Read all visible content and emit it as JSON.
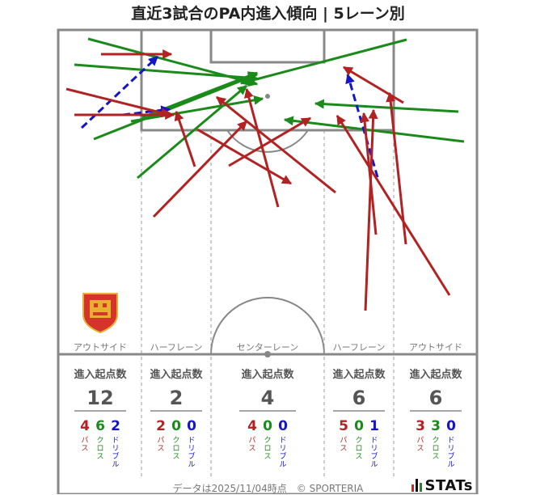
{
  "title": "直近3試合のPA内進入傾向 | 5レーン別",
  "colors": {
    "pass": "#b22222",
    "cross": "#1a8a1a",
    "dribble": "#1515c8",
    "line": "#888888"
  },
  "lanes": [
    {
      "label": "アウトサイド",
      "stat_head": "進入起点数",
      "total": "12",
      "breakdown": [
        {
          "value": "4",
          "label": "パス",
          "color": "#b22222"
        },
        {
          "value": "6",
          "label": "クロス",
          "color": "#1a8a1a"
        },
        {
          "value": "2",
          "label": "ドリブル",
          "color": "#1515c8"
        }
      ]
    },
    {
      "label": "ハーフレーン",
      "stat_head": "進入起点数",
      "total": "2",
      "breakdown": [
        {
          "value": "2",
          "label": "パス",
          "color": "#b22222"
        },
        {
          "value": "0",
          "label": "クロス",
          "color": "#1a8a1a"
        },
        {
          "value": "0",
          "label": "ドリブル",
          "color": "#1515c8"
        }
      ]
    },
    {
      "label": "センターレーン",
      "stat_head": "進入起点数",
      "total": "4",
      "breakdown": [
        {
          "value": "4",
          "label": "パス",
          "color": "#b22222"
        },
        {
          "value": "0",
          "label": "クロス",
          "color": "#1a8a1a"
        },
        {
          "value": "0",
          "label": "ドリブル",
          "color": "#1515c8"
        }
      ]
    },
    {
      "label": "ハーフレーン",
      "stat_head": "進入起点数",
      "total": "6",
      "breakdown": [
        {
          "value": "5",
          "label": "パス",
          "color": "#b22222"
        },
        {
          "value": "0",
          "label": "クロス",
          "color": "#1a8a1a"
        },
        {
          "value": "1",
          "label": "ドリブル",
          "color": "#1515c8"
        }
      ]
    },
    {
      "label": "アウトサイド",
      "stat_head": "進入起点数",
      "total": "6",
      "breakdown": [
        {
          "value": "3",
          "label": "パス",
          "color": "#b22222"
        },
        {
          "value": "3",
          "label": "クロス",
          "color": "#1a8a1a"
        },
        {
          "value": "0",
          "label": "ドリブル",
          "color": "#1515c8"
        }
      ]
    }
  ],
  "footer": "データは2025/11/04時点　© SPORTERIA",
  "brand": "STATs",
  "chart_data": {
    "type": "arrow-map",
    "title": "直近3試合のPA内進入傾向 | 5レーン別",
    "lanes": [
      "アウトサイド",
      "ハーフレーン",
      "センターレーン",
      "ハーフレーン",
      "アウトサイド"
    ],
    "lane_totals": [
      12,
      2,
      4,
      6,
      6
    ],
    "breakdown": {
      "パス": [
        4,
        2,
        4,
        5,
        3
      ],
      "クロス": [
        6,
        0,
        0,
        0,
        3
      ],
      "ドリブル": [
        2,
        0,
        0,
        1,
        0
      ]
    }
  }
}
